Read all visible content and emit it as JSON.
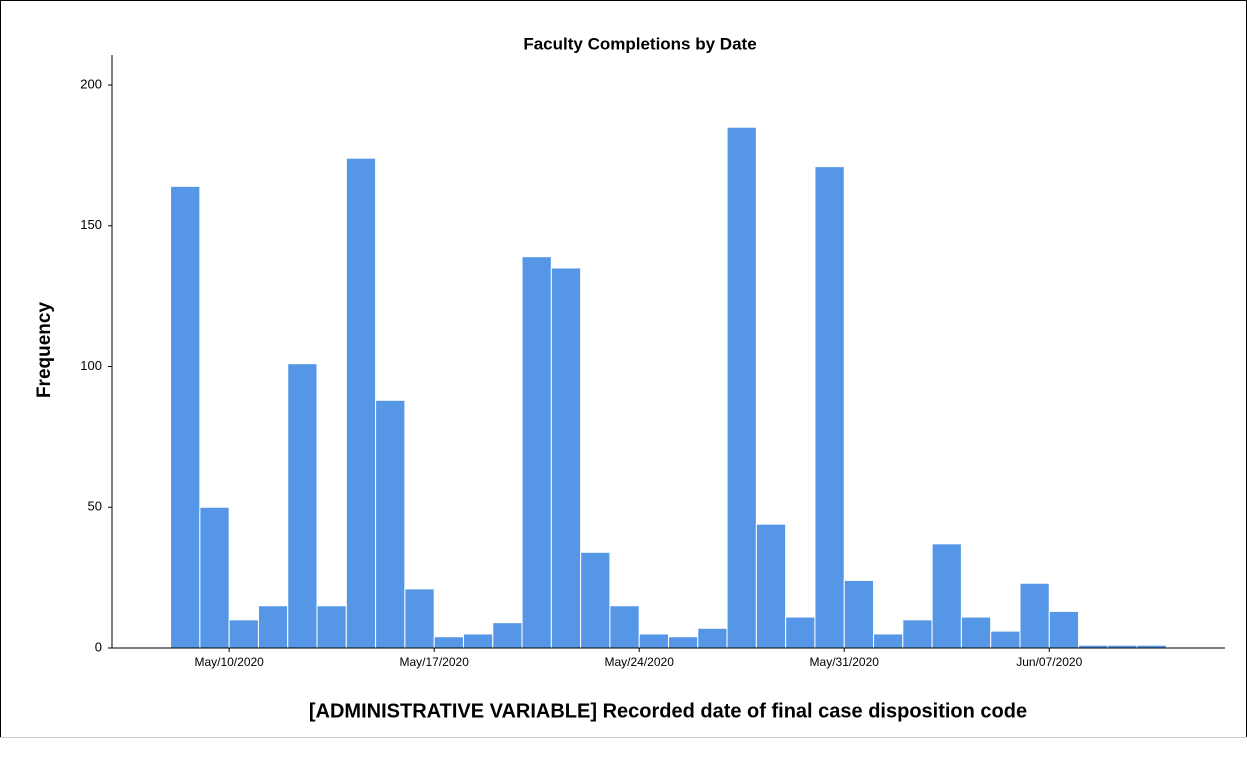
{
  "chart_data": {
    "type": "histogram",
    "title": "Faculty Completions by Date",
    "x_label": "[ADMINISTRATIVE VARIABLE] Recorded date of final case disposition code",
    "y_label": "Frequency",
    "bins": [
      "2020-05-08",
      "2020-05-09",
      "2020-05-10",
      "2020-05-11",
      "2020-05-12",
      "2020-05-13",
      "2020-05-14",
      "2020-05-15",
      "2020-05-16",
      "2020-05-17",
      "2020-05-18",
      "2020-05-19",
      "2020-05-20",
      "2020-05-21",
      "2020-05-22",
      "2020-05-23",
      "2020-05-24",
      "2020-05-25",
      "2020-05-26",
      "2020-05-27",
      "2020-05-28",
      "2020-05-29",
      "2020-05-30",
      "2020-05-31",
      "2020-06-01",
      "2020-06-02",
      "2020-06-03",
      "2020-06-04",
      "2020-06-05",
      "2020-06-06",
      "2020-06-07",
      "2020-06-08",
      "2020-06-09",
      "2020-06-10",
      "2020-06-11"
    ],
    "values": [
      164,
      50,
      10,
      15,
      101,
      15,
      174,
      88,
      21,
      4,
      5,
      9,
      139,
      135,
      34,
      15,
      5,
      4,
      7,
      185,
      44,
      11,
      171,
      24,
      5,
      10,
      37,
      11,
      6,
      23,
      13,
      1,
      1,
      1
    ],
    "color": "#5596e6",
    "xlim": [
      "2020-05-06",
      "2020-06-13"
    ],
    "xticks": [
      {
        "value": "2020-05-10",
        "label": "May/10/2020"
      },
      {
        "value": "2020-05-17",
        "label": "May/17/2020"
      },
      {
        "value": "2020-05-24",
        "label": "May/24/2020"
      },
      {
        "value": "2020-05-31",
        "label": "May/31/2020"
      },
      {
        "value": "2020-06-07",
        "label": "Jun/07/2020"
      }
    ],
    "ylim": [
      0,
      200
    ],
    "yticks": [
      0,
      50,
      100,
      150,
      200
    ],
    "grid": false
  }
}
